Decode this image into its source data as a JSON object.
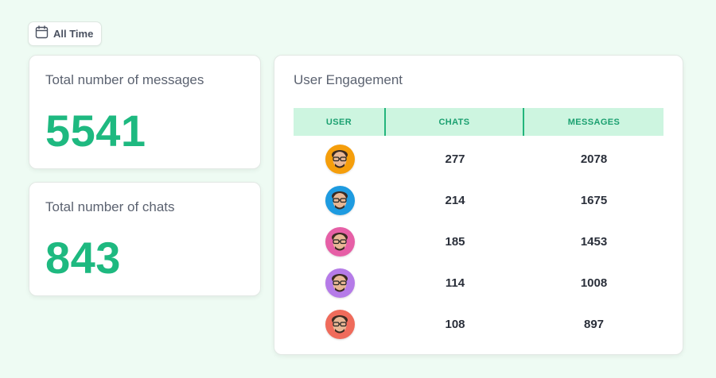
{
  "filter": {
    "label": "All Time",
    "icon": "calendar-icon"
  },
  "stats": [
    {
      "title": "Total number of messages",
      "value": "5541"
    },
    {
      "title": "Total number of chats",
      "value": "843"
    }
  ],
  "engagement": {
    "title": "User Engagement",
    "columns": [
      "USER",
      "CHATS",
      "MESSAGES"
    ],
    "rows": [
      {
        "avatar_color": "#f59e0b",
        "chats": "277",
        "messages": "2078"
      },
      {
        "avatar_color": "#1e9be0",
        "chats": "214",
        "messages": "1675"
      },
      {
        "avatar_color": "#e65fa6",
        "chats": "185",
        "messages": "1453"
      },
      {
        "avatar_color": "#b57be8",
        "chats": "114",
        "messages": "1008"
      },
      {
        "avatar_color": "#ef6b5b",
        "chats": "108",
        "messages": "897"
      }
    ]
  },
  "colors": {
    "accent": "#1eb980",
    "header_bg": "#cdf5e0",
    "page_bg": "#eefbf3"
  }
}
